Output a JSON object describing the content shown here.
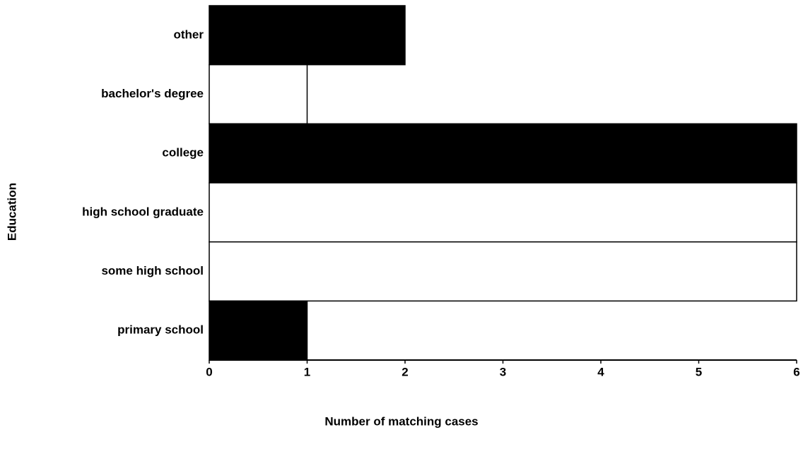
{
  "chart_data": {
    "type": "bar",
    "orientation": "horizontal",
    "categories": [
      "other",
      "bachelor's degree",
      "college",
      "high school graduate",
      "some high school",
      "primary school"
    ],
    "values": [
      2,
      1,
      6,
      6,
      6,
      1
    ],
    "colors": [
      "#000000",
      "#ffffff",
      "#000000",
      "#ffffff",
      "#ffffff",
      "#000000"
    ],
    "xlim": [
      0,
      6
    ],
    "xticks": [
      0,
      1,
      2,
      3,
      4,
      5,
      6
    ],
    "xlabel": "Number of matching cases",
    "ylabel": "Education"
  }
}
